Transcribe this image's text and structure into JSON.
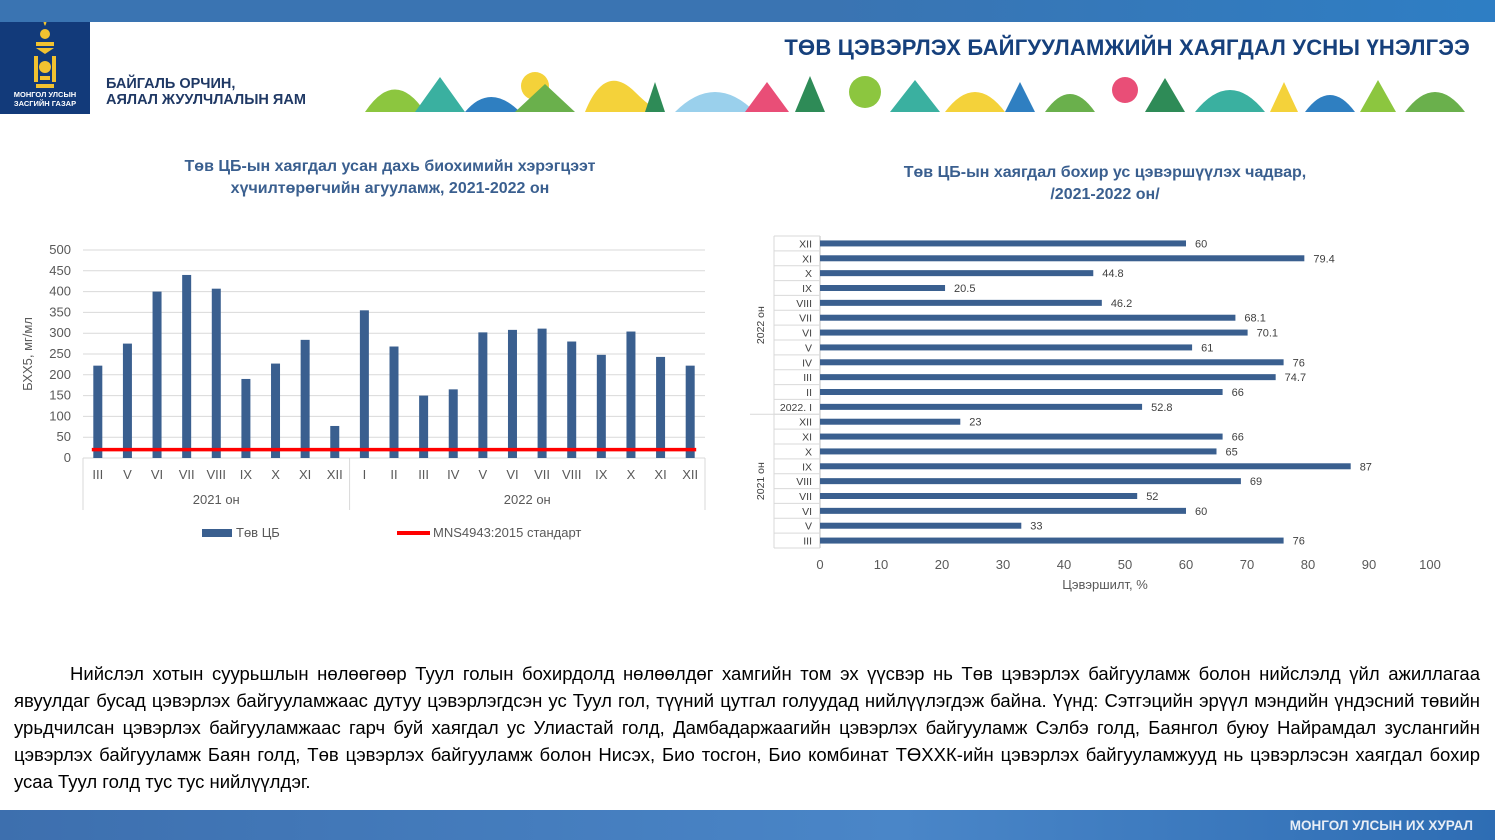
{
  "header": {
    "title": "ТӨВ ЦЭВЭРЛЭХ БАЙГУУЛАМЖИЙН ХАЯГДАЛ УСНЫ ҮНЭЛГЭЭ",
    "emblem_text_1": "МОНГОЛ УЛСЫН",
    "emblem_text_2": "ЗАСГИЙН ГАЗАР",
    "ministry_line1": "БАЙГАЛЬ ОРЧИН,",
    "ministry_line2": "АЯЛАЛ ЖУУЛЧЛАЛЫН ЯАМ"
  },
  "colors": {
    "bar": "#3a5f8f",
    "standard_line": "#ff0000",
    "title_text": "#16407c"
  },
  "chart_data": [
    {
      "type": "bar",
      "title_line1": "Төв ЦБ-ын хаягдал усан дахь биохимийн хэрэгцээт",
      "title_line2": "хүчилтөрөгчийн агууламж, 2021-2022 он",
      "ylabel": "БХХ5, мг/мл",
      "ylim": [
        0,
        500
      ],
      "yticks": [
        "0",
        "50",
        "100",
        "150",
        "200",
        "250",
        "300",
        "350",
        "400",
        "450",
        "500"
      ],
      "categories": [
        "III",
        "V",
        "VI",
        "VII",
        "VIII",
        "IX",
        "X",
        "XI",
        "XII",
        "I",
        "II",
        "III",
        "IV",
        "V",
        "VI",
        "VII",
        "VIII",
        "IX",
        "X",
        "XI",
        "XII"
      ],
      "groups": [
        {
          "label": "2021 он",
          "count": 9
        },
        {
          "label": "2022 он",
          "count": 12
        }
      ],
      "series": [
        {
          "name": "Төв ЦБ",
          "values": [
            222,
            275,
            400,
            440,
            407,
            190,
            227,
            284,
            77,
            355,
            268,
            150,
            165,
            302,
            308,
            311,
            280,
            248,
            304,
            243,
            222
          ]
        },
        {
          "name": "MNS4943:2015 стандарт",
          "values": [
            20,
            20,
            20,
            20,
            20,
            20,
            20,
            20,
            20,
            20,
            20,
            20,
            20,
            20,
            20,
            20,
            20,
            20,
            20,
            20,
            20
          ]
        }
      ]
    },
    {
      "type": "bar",
      "orientation": "horizontal",
      "title_line1": "Төв ЦБ-ын хаягдал бохир ус цэвэршүүлэх чадвар,",
      "title_line2": "/2021-2022 он/",
      "xlabel": "Цэвэршилт, %",
      "xlim": [
        0,
        100
      ],
      "xticks": [
        "0",
        "10",
        "20",
        "30",
        "40",
        "50",
        "60",
        "70",
        "80",
        "90",
        "100"
      ],
      "groups": [
        {
          "label": "2022 он"
        },
        {
          "label": "2021 он"
        }
      ],
      "categories": [
        "XII",
        "XI",
        "X",
        "IX",
        "VIII",
        "VII",
        "VI",
        "V",
        "IV",
        "III",
        "II",
        "2022. I",
        "XII",
        "XI",
        "X",
        "IX",
        "VIII",
        "VII",
        "VI",
        "V",
        "III"
      ],
      "values": [
        60,
        79.4,
        44.8,
        20.5,
        46.2,
        68.1,
        70.1,
        61,
        76,
        74.7,
        66,
        52.8,
        23,
        66,
        65,
        87,
        69,
        52,
        60,
        33,
        76
      ],
      "labels": [
        "60",
        "79.4",
        "44.8",
        "20.5",
        "46.2",
        "68.1",
        "70.1",
        "61",
        "76",
        "74.7",
        "66",
        "52.8",
        "23",
        "66",
        "65",
        "87",
        "69",
        "52",
        "60",
        "33",
        "76"
      ]
    }
  ],
  "body_text": "Нийслэл хотын суурьшлын нөлөөгөөр Туул голын бохирдолд нөлөөлдөг хамгийн том эх үүсвэр нь Төв цэвэрлэх байгууламж болон нийслэлд үйл ажиллагаа явуулдаг бусад цэвэрлэх байгууламжаас дутуу цэвэрлэгдсэн ус Туул гол, түүний цутгал голуудад нийлүүлэгдэж байна. Үүнд: Сэтгэцийн эрүүл мэндийн үндэсний төвийн урьдчилсан цэвэрлэх байгууламжаас гарч буй хаягдал ус Улиастай голд, Дамбадаржаагийн цэвэрлэх байгууламж Сэлбэ голд, Баянгол буюу Найрамдал зуслангийн цэвэрлэх байгууламж Баян голд, Төв цэвэрлэх байгууламж болон Нисэх, Био тосгон, Био комбинат  ТӨХХК-ийн цэвэрлэх байгууламжууд нь цэвэрлэсэн хаягдал бохир усаа Туул голд тус тус нийлүүлдэг.",
  "footer": {
    "text": "МОНГОЛ УЛСЫН ИХ ХУРАЛ"
  }
}
